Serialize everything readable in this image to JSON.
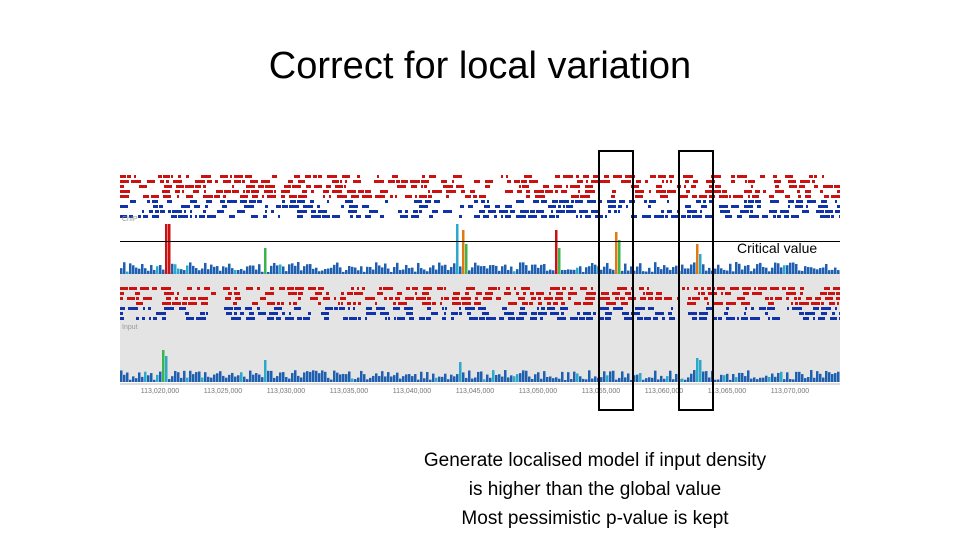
{
  "slide": {
    "title": "Correct for local variation"
  },
  "genome_browser": {
    "critical_value_label": "Critical value",
    "upper_track_label": "ChIP",
    "lower_track_label": "Input",
    "axis_ticks": [
      "113,020,000",
      "113,025,000",
      "113,030,000",
      "113,035,000",
      "113,040,000",
      "113,045,000",
      "113,050,000",
      "113,055,000",
      "113,060,000",
      "113,065,000",
      "113,070,000"
    ],
    "colors": {
      "forward_reads": "#cc1111",
      "reverse_reads": "#1133aa",
      "coverage_base": "#1f5fb0",
      "peak_red": "#cc1111",
      "peak_orange": "#e07a10",
      "peak_green": "#3cb44b"
    }
  },
  "caption": {
    "line1": "Generate localised model if input density",
    "line2": "is higher than the global value",
    "line3": "Most pessimistic p-value is kept"
  }
}
